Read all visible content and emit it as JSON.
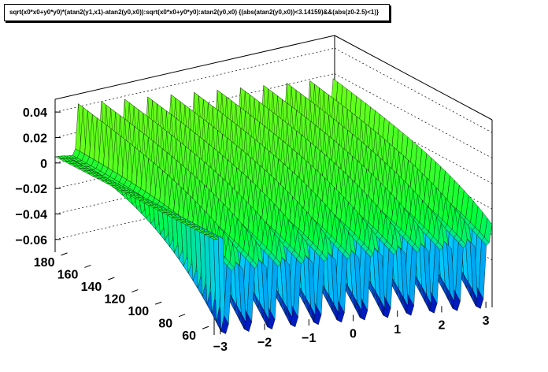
{
  "chart_data": {
    "type": "surface3d",
    "title": "sqrt(x0*x0+y0*y0)*(atan2(y1,x1)-atan2(y0,x0)):sqrt(x0*x0+y0*y0):atan2(y0,x0) {(abs(atan2(y0,x0))<3.14159)&&(abs(z0-2.5)<1)}",
    "x_axis": {
      "ticks": [
        -3,
        -2,
        -1,
        0,
        1,
        2,
        3
      ],
      "tick_labels": [
        "−3",
        "−2",
        "−1",
        "0",
        "1",
        "2",
        "3"
      ],
      "range": [
        -3.14,
        3.14
      ]
    },
    "y_axis": {
      "ticks": [
        60,
        80,
        100,
        120,
        140,
        160,
        180
      ],
      "tick_labels": [
        "60",
        "80",
        "100",
        "120",
        "140",
        "160",
        "180"
      ],
      "range": [
        50,
        185
      ]
    },
    "z_axis": {
      "ticks": [
        -0.06,
        -0.04,
        -0.02,
        0,
        0.02,
        0.04
      ],
      "tick_labels": [
        "−0.06",
        "−0.04",
        "−0.02",
        "0",
        "0.02",
        "0.04"
      ],
      "range": [
        -0.07,
        0.05
      ]
    },
    "surface": {
      "n_peaks": 12,
      "peak_value": 0.04,
      "trough_value": -0.065,
      "baseline": -0.01,
      "colors": {
        "low": "#0000b4",
        "mid": "#00c8ff",
        "high": "#00ff3c",
        "top": "#b4ff00",
        "mesh_line": "#000000"
      }
    },
    "grid": true
  }
}
